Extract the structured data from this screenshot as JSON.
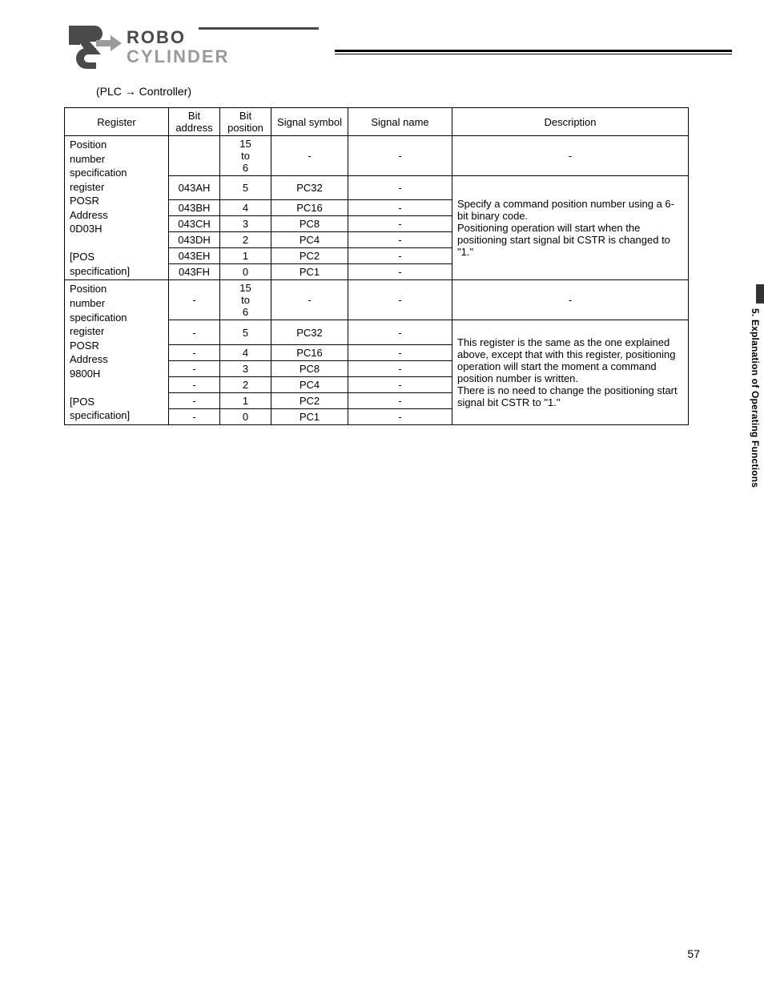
{
  "subtitle": "(PLC → Controller)",
  "headers": {
    "register": "Register",
    "bit_address": "Bit\naddress",
    "bit_position": "Bit\nposition",
    "signal_symbol": "Signal\nsymbol",
    "signal_name": "Signal name",
    "description": "Description"
  },
  "blocks": [
    {
      "register_lines": [
        "Position",
        "number",
        "specification",
        "register",
        "POSR",
        "Address",
        "0D03H",
        "",
        "[POS",
        "specification]"
      ],
      "rows": [
        {
          "addr": "",
          "bit": "15\nto\n6",
          "sym": "-",
          "name": "-",
          "desc": "-",
          "desc_rowspan": 1
        },
        {
          "addr": "043AH",
          "bit": "5",
          "sym": "PC32",
          "name": "-",
          "desc": "Specify a command position number using a 6-bit binary code.\nPositioning operation will start when the positioning start signal bit CSTR is changed to \"1.\"",
          "desc_rowspan": 6
        },
        {
          "addr": "043BH",
          "bit": "4",
          "sym": "PC16",
          "name": "-"
        },
        {
          "addr": "043CH",
          "bit": "3",
          "sym": "PC8",
          "name": "-"
        },
        {
          "addr": "043DH",
          "bit": "2",
          "sym": "PC4",
          "name": "-"
        },
        {
          "addr": "043EH",
          "bit": "1",
          "sym": "PC2",
          "name": "-"
        },
        {
          "addr": "043FH",
          "bit": "0",
          "sym": "PC1",
          "name": "-"
        }
      ]
    },
    {
      "register_lines": [
        "Position",
        "number",
        "specification",
        "register",
        "POSR",
        "Address",
        "9800H",
        "",
        "[POS",
        "specification]"
      ],
      "rows": [
        {
          "addr": "-",
          "bit": "15\nto\n6",
          "sym": "-",
          "name": "-",
          "desc": "-",
          "desc_rowspan": 1
        },
        {
          "addr": "-",
          "bit": "5",
          "sym": "PC32",
          "name": "-",
          "desc": "This register is the same as the one explained above, except that with this register, positioning operation will start the moment a command position number is written.\nThere is no need to change the positioning start signal bit CSTR to \"1.\"",
          "desc_rowspan": 6
        },
        {
          "addr": "-",
          "bit": "4",
          "sym": "PC16",
          "name": "-"
        },
        {
          "addr": "-",
          "bit": "3",
          "sym": "PC8",
          "name": "-"
        },
        {
          "addr": "-",
          "bit": "2",
          "sym": "PC4",
          "name": "-"
        },
        {
          "addr": "-",
          "bit": "1",
          "sym": "PC2",
          "name": "-"
        },
        {
          "addr": "-",
          "bit": "0",
          "sym": "PC1",
          "name": "-"
        }
      ]
    }
  ],
  "side_tab": "5. Explanation of Operating Functions",
  "page_number": "57",
  "logo": {
    "text_top": "ROBO",
    "text_bottom": "CYLINDER",
    "color_dark": "#4a4a4a",
    "color_light": "#9a9a9a"
  }
}
